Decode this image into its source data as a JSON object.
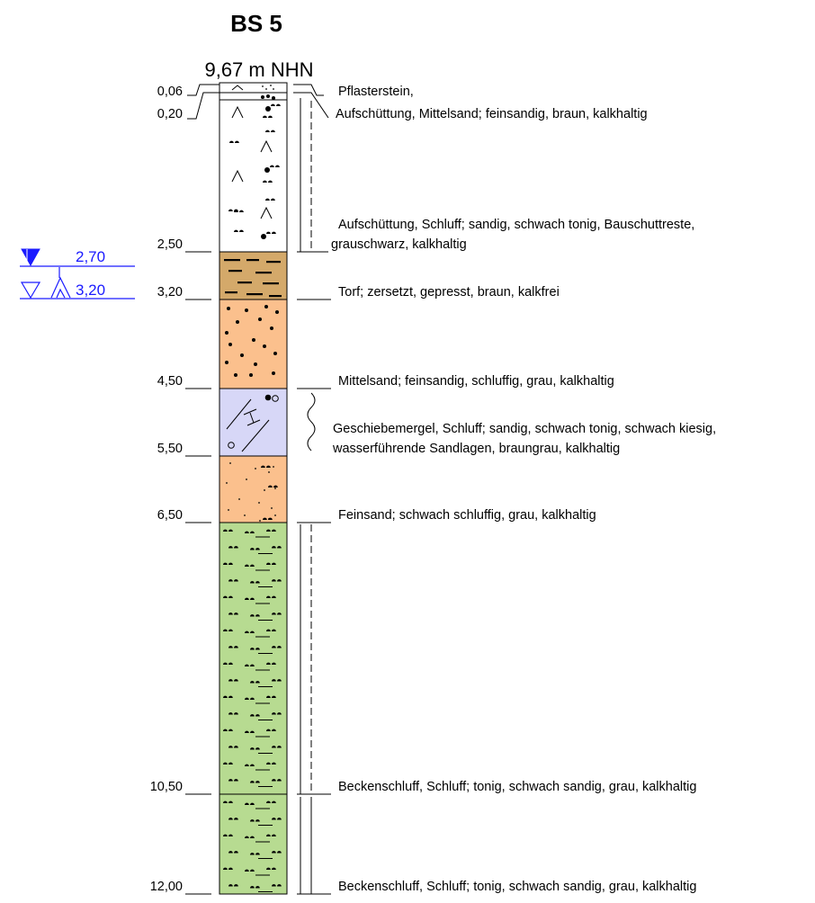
{
  "title": "BS 5",
  "elevation": "9,67 m NHN",
  "colors": {
    "fill_sand_fine_upper": "#ffffff",
    "fill_peat": "#d4a96a",
    "fill_medium_sand": "#fbc08d",
    "fill_till": "#d7d7f7",
    "fill_fine_sand": "#fbc08d",
    "fill_silt": "#b7db91",
    "water": "#1a1aff"
  },
  "layers": [
    {
      "depth_top": 0.0,
      "depth_bottom": 0.06,
      "label": "0,06",
      "pattern": "pavement",
      "description": [
        "Pflasterstein,"
      ],
      "moisture": "none"
    },
    {
      "depth_top": 0.06,
      "depth_bottom": 0.2,
      "label": "0,20",
      "pattern": "fill-sand",
      "description": [
        "Aufschüttung, Mittelsand; feinsandig, braun, kalkhaltig"
      ],
      "moisture": "dry"
    },
    {
      "depth_top": 0.2,
      "depth_bottom": 2.5,
      "label": "2,50",
      "pattern": "fill-silt",
      "description": [
        "Aufschüttung, Schluff; sandig, schwach tonig, Bauschuttreste,",
        "grauschwarz, kalkhaltig"
      ],
      "moisture": "moist"
    },
    {
      "depth_top": 2.5,
      "depth_bottom": 3.2,
      "label": "3,20",
      "pattern": "peat",
      "description": [
        "Torf; zersetzt, gepresst, braun, kalkfrei"
      ],
      "moisture": "none"
    },
    {
      "depth_top": 3.2,
      "depth_bottom": 4.5,
      "label": "4,50",
      "pattern": "medium-sand",
      "description": [
        "Mittelsand; feinsandig, schluffig, grau, kalkhaltig"
      ],
      "moisture": "none"
    },
    {
      "depth_top": 4.5,
      "depth_bottom": 5.5,
      "label": "5,50",
      "pattern": "till",
      "description": [
        "Geschiebemergel, Schluff; sandig, schwach tonig, schwach kiesig,",
        "wasserführende Sandlagen, braungrau, kalkhaltig"
      ],
      "moisture": "water-bearing"
    },
    {
      "depth_top": 5.5,
      "depth_bottom": 6.5,
      "label": "6,50",
      "pattern": "fine-sand",
      "description": [
        "Feinsand; schwach schluffig, grau, kalkhaltig"
      ],
      "moisture": "none"
    },
    {
      "depth_top": 6.5,
      "depth_bottom": 10.5,
      "label": "10,50",
      "pattern": "silt",
      "description": [
        "Beckenschluff, Schluff; tonig, schwach sandig, grau, kalkhaltig"
      ],
      "moisture": "moist"
    },
    {
      "depth_top": 10.5,
      "depth_bottom": 12.0,
      "label": "12,00",
      "pattern": "silt",
      "description": [
        "Beckenschluff, Schluff; tonig, schwach sandig, grau, kalkhaltig"
      ],
      "moisture": "wet"
    }
  ],
  "groundwater": [
    {
      "label": "2,70",
      "kind": "encountered"
    },
    {
      "label": "3,20",
      "kind": "rising"
    }
  ]
}
